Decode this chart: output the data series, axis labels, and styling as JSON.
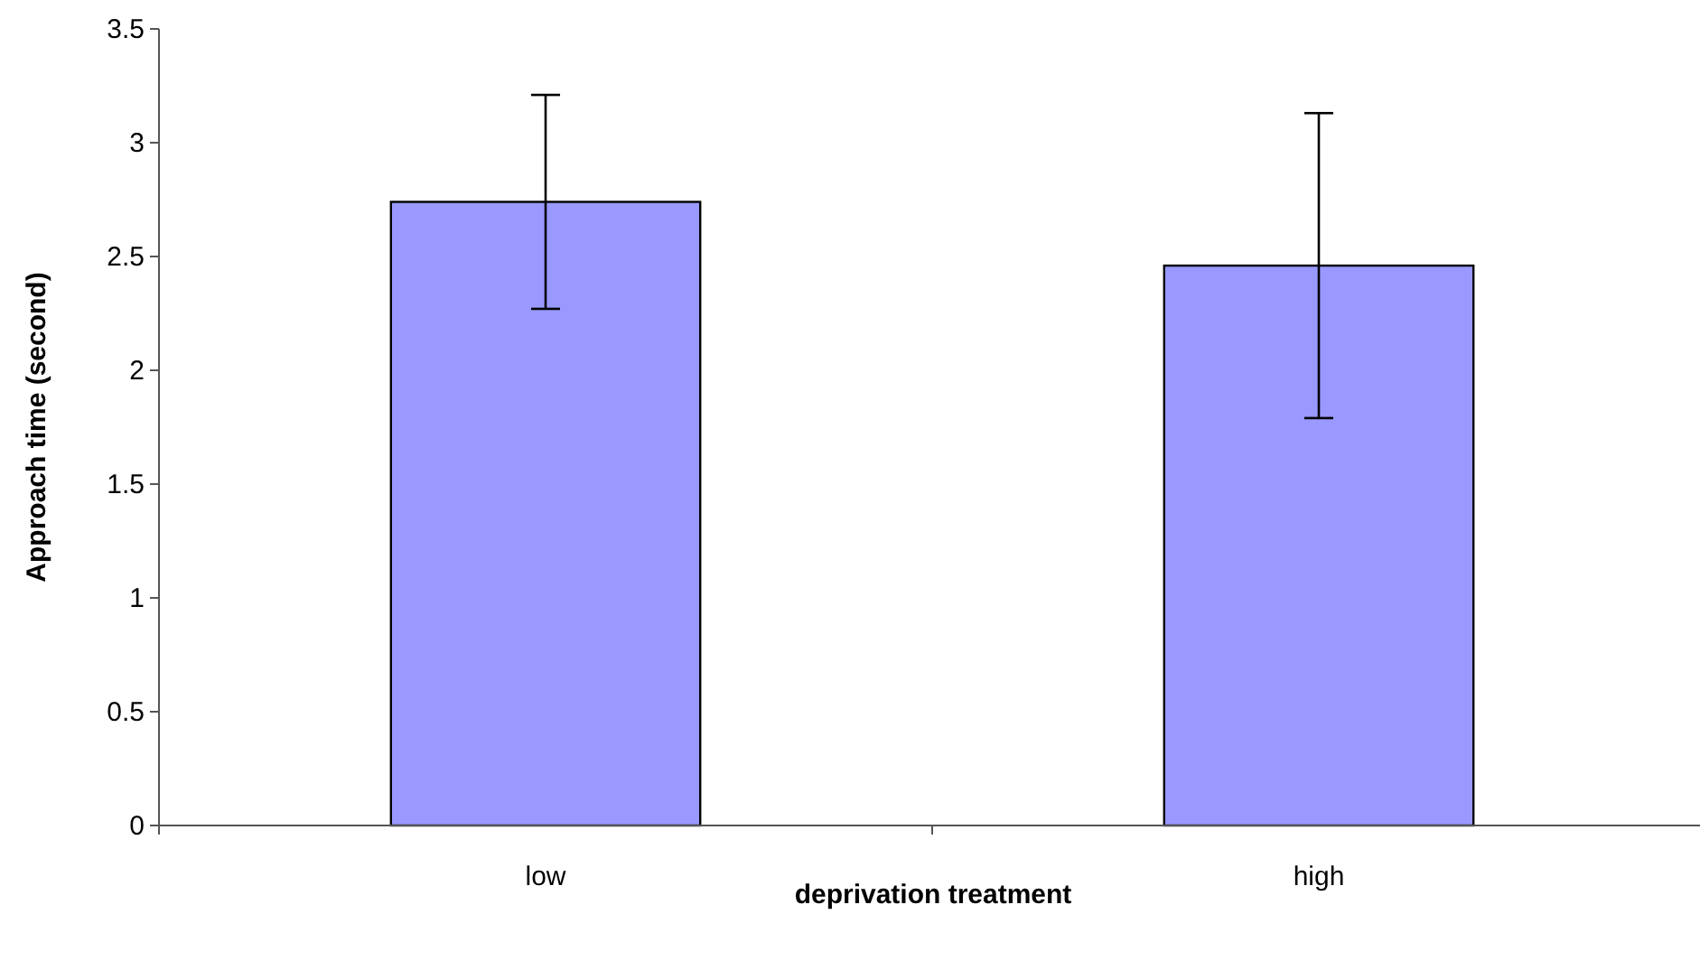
{
  "chart_data": {
    "type": "bar",
    "xlabel": "deprivation treatment",
    "ylabel": "Approach time (second)",
    "categories": [
      "low",
      "high"
    ],
    "series": [
      {
        "color": "#9999ff",
        "values": [
          2.74,
          2.46
        ],
        "errors": [
          0.47,
          0.67
        ]
      }
    ],
    "ylim": [
      0,
      3.5
    ],
    "yticks": [
      0,
      0.5,
      1,
      1.5,
      2,
      2.5,
      3,
      3.5
    ],
    "grid": false
  }
}
